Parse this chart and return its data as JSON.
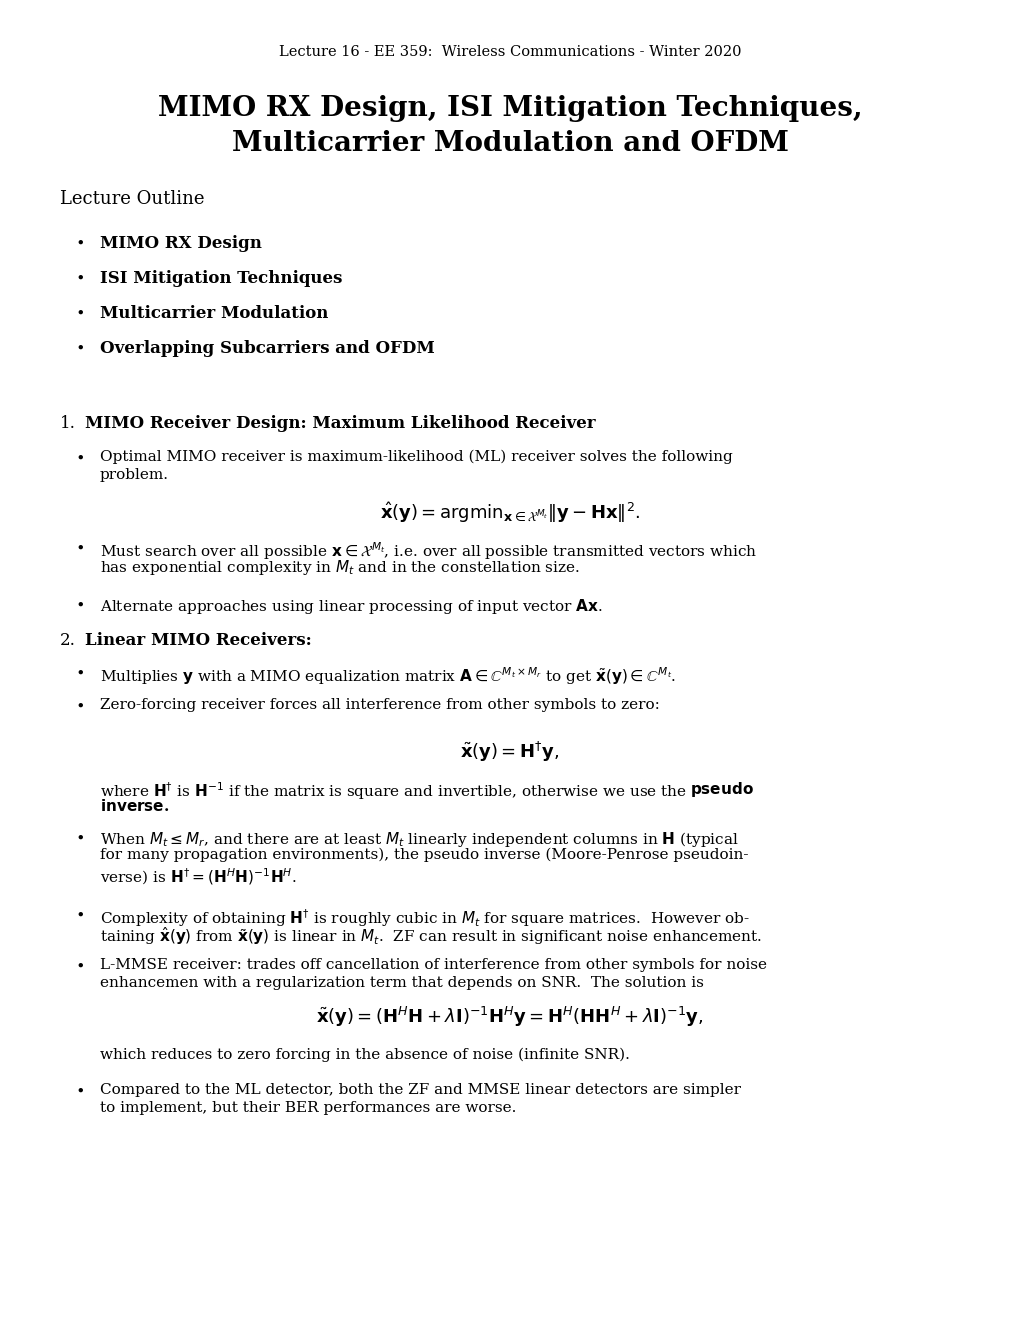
{
  "background_color": "#ffffff",
  "header": "Lecture 16 - EE 359:  Wireless Communications - Winter 2020",
  "title_line1": "MIMO RX Design, ISI Mitigation Techniques,",
  "title_line2": "Multicarrier Modulation and OFDM",
  "outline_header": "Lecture Outline",
  "outline_items": [
    "MIMO RX Design",
    "ISI Mitigation Techniques",
    "Multicarrier Modulation",
    "Overlapping Subcarriers and OFDM"
  ],
  "section1_title": "MIMO Receiver Design: Maximum Likelihood Receiver",
  "section2_title": "Linear MIMO Receivers:"
}
